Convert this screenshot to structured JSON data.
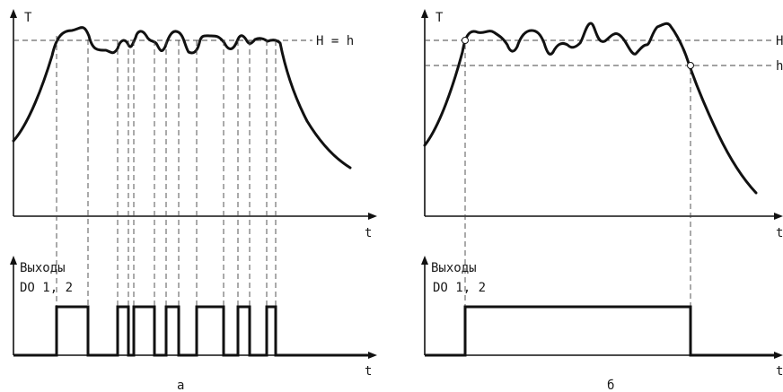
{
  "panel_a": {
    "caption": "а",
    "y_axis_top": "T",
    "x_axis_top": "t",
    "threshold_label": "H = h",
    "y_axis_bottom": "Выходы",
    "outputs_label": "DO 1, 2",
    "x_axis_bottom": "t"
  },
  "panel_b": {
    "caption": "б",
    "y_axis_top": "T",
    "x_axis_top": "t",
    "threshold_high_label": "H",
    "threshold_low_label": "h",
    "y_axis_bottom": "Выходы",
    "outputs_label": "DO 1, 2",
    "x_axis_bottom": "t"
  }
}
